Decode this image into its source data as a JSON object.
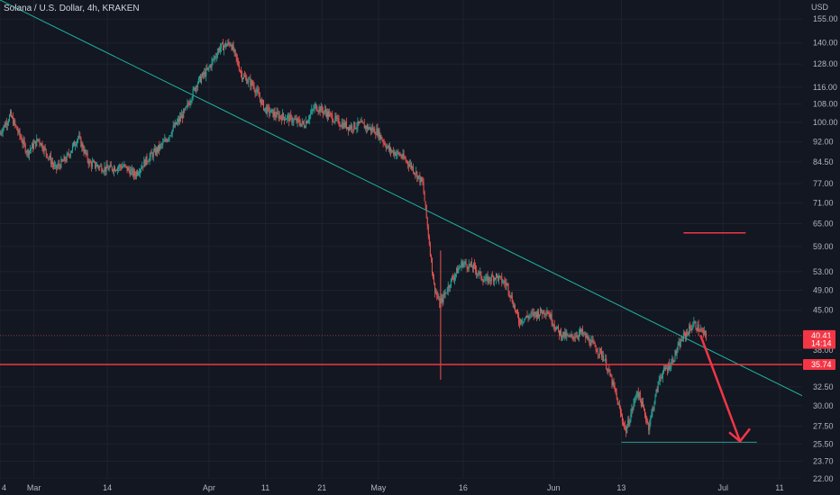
{
  "header": {
    "title": "Solana / U.S. Dollar, 4h, KRAKEN"
  },
  "colors": {
    "background": "#131722",
    "grid": "#1e222d",
    "up_candle": "#26a69a",
    "down_candle": "#ef5350",
    "trendline": "#1fb7a3",
    "support_line": "#f23645",
    "bottom_line": "#2a9d8f",
    "arrow": "#f23645",
    "axis_text": "#b2b5be"
  },
  "chart_data": {
    "type": "candlestick",
    "symbol": "Solana / U.S. Dollar",
    "interval": "4h",
    "exchange": "KRAKEN",
    "y_axis": {
      "unit": "USD",
      "scale": "log",
      "range": [
        22.0,
        168.0
      ],
      "ticks": [
        "155.00",
        "140.00",
        "128.00",
        "116.00",
        "108.00",
        "100.00",
        "92.00",
        "84.50",
        "77.00",
        "71.00",
        "65.00",
        "59.00",
        "53.00",
        "49.00",
        "45.00",
        "38.00",
        "32.50",
        "30.00",
        "27.50",
        "25.50",
        "23.70",
        "22.00"
      ]
    },
    "x_axis": {
      "range": [
        "2022-02-23",
        "2022-07-15"
      ],
      "ticks": [
        {
          "date": "2022-02-23",
          "label": "4"
        },
        {
          "date": "2022-03-01",
          "label": "Mar"
        },
        {
          "date": "2022-03-14",
          "label": "14"
        },
        {
          "date": "2022-04-01",
          "label": "Apr"
        },
        {
          "date": "2022-04-11",
          "label": "11"
        },
        {
          "date": "2022-04-21",
          "label": "21"
        },
        {
          "date": "2022-05-01",
          "label": "May"
        },
        {
          "date": "2022-05-16",
          "label": "16"
        },
        {
          "date": "2022-06-01",
          "label": "Jun"
        },
        {
          "date": "2022-06-13",
          "label": "13"
        },
        {
          "date": "2022-07-01",
          "label": "Jul"
        },
        {
          "date": "2022-07-11",
          "label": "11"
        }
      ]
    },
    "price_path": [
      [
        "2022-02-23",
        95
      ],
      [
        "2022-02-25",
        103
      ],
      [
        "2022-02-28",
        88
      ],
      [
        "2022-03-02",
        93
      ],
      [
        "2022-03-05",
        82
      ],
      [
        "2022-03-07",
        86
      ],
      [
        "2022-03-09",
        94
      ],
      [
        "2022-03-11",
        84
      ],
      [
        "2022-03-14",
        82
      ],
      [
        "2022-03-17",
        83
      ],
      [
        "2022-03-19",
        80
      ],
      [
        "2022-03-21",
        85
      ],
      [
        "2022-03-24",
        91
      ],
      [
        "2022-03-26",
        98
      ],
      [
        "2022-03-28",
        105
      ],
      [
        "2022-03-30",
        118
      ],
      [
        "2022-04-01",
        125
      ],
      [
        "2022-04-03",
        137
      ],
      [
        "2022-04-05",
        140
      ],
      [
        "2022-04-07",
        122
      ],
      [
        "2022-04-09",
        117
      ],
      [
        "2022-04-11",
        106
      ],
      [
        "2022-04-13",
        103
      ],
      [
        "2022-04-15",
        102
      ],
      [
        "2022-04-18",
        99
      ],
      [
        "2022-04-20",
        107
      ],
      [
        "2022-04-22",
        104
      ],
      [
        "2022-04-24",
        100
      ],
      [
        "2022-04-26",
        98
      ],
      [
        "2022-04-28",
        99
      ],
      [
        "2022-05-01",
        96
      ],
      [
        "2022-05-03",
        89
      ],
      [
        "2022-05-05",
        87
      ],
      [
        "2022-05-07",
        83
      ],
      [
        "2022-05-09",
        77
      ],
      [
        "2022-05-10",
        62
      ],
      [
        "2022-05-11",
        50
      ],
      [
        "2022-05-12",
        46
      ],
      [
        "2022-05-14",
        51
      ],
      [
        "2022-05-16",
        55
      ],
      [
        "2022-05-18",
        54
      ],
      [
        "2022-05-20",
        51
      ],
      [
        "2022-05-22",
        52
      ],
      [
        "2022-05-24",
        50
      ],
      [
        "2022-05-26",
        43
      ],
      [
        "2022-05-28",
        44
      ],
      [
        "2022-05-31",
        45
      ],
      [
        "2022-06-02",
        41
      ],
      [
        "2022-06-04",
        40
      ],
      [
        "2022-06-06",
        41
      ],
      [
        "2022-06-08",
        39
      ],
      [
        "2022-06-10",
        37
      ],
      [
        "2022-06-12",
        32
      ],
      [
        "2022-06-13",
        29
      ],
      [
        "2022-06-14",
        27
      ],
      [
        "2022-06-16",
        32
      ],
      [
        "2022-06-18",
        27.5
      ],
      [
        "2022-06-20",
        34
      ],
      [
        "2022-06-22",
        36
      ],
      [
        "2022-06-24",
        40
      ],
      [
        "2022-06-26",
        42.5
      ],
      [
        "2022-06-28",
        40.4
      ]
    ],
    "annotations": {
      "trendline": {
        "from": [
          "2022-02-23",
          168
        ],
        "to": [
          "2022-07-15",
          31.3
        ]
      },
      "support_line": {
        "price": 35.74
      },
      "bottom_line": {
        "from": "2022-06-13",
        "to": "2022-07-07",
        "price": 25.7
      },
      "target_line": {
        "from": "2022-06-24",
        "to": "2022-07-05",
        "price": 62.5
      },
      "arrow": {
        "from": [
          "2022-06-27",
          40.5
        ],
        "to": [
          "2022-07-04",
          25.8
        ]
      }
    },
    "price_tags": [
      {
        "label": "40.41",
        "price": 40.41,
        "color": "#f23645"
      },
      {
        "label": "14:14",
        "price": 39.1,
        "color": "#f23645"
      },
      {
        "label": "35.74",
        "price": 35.74,
        "color": "#f23645"
      }
    ]
  }
}
